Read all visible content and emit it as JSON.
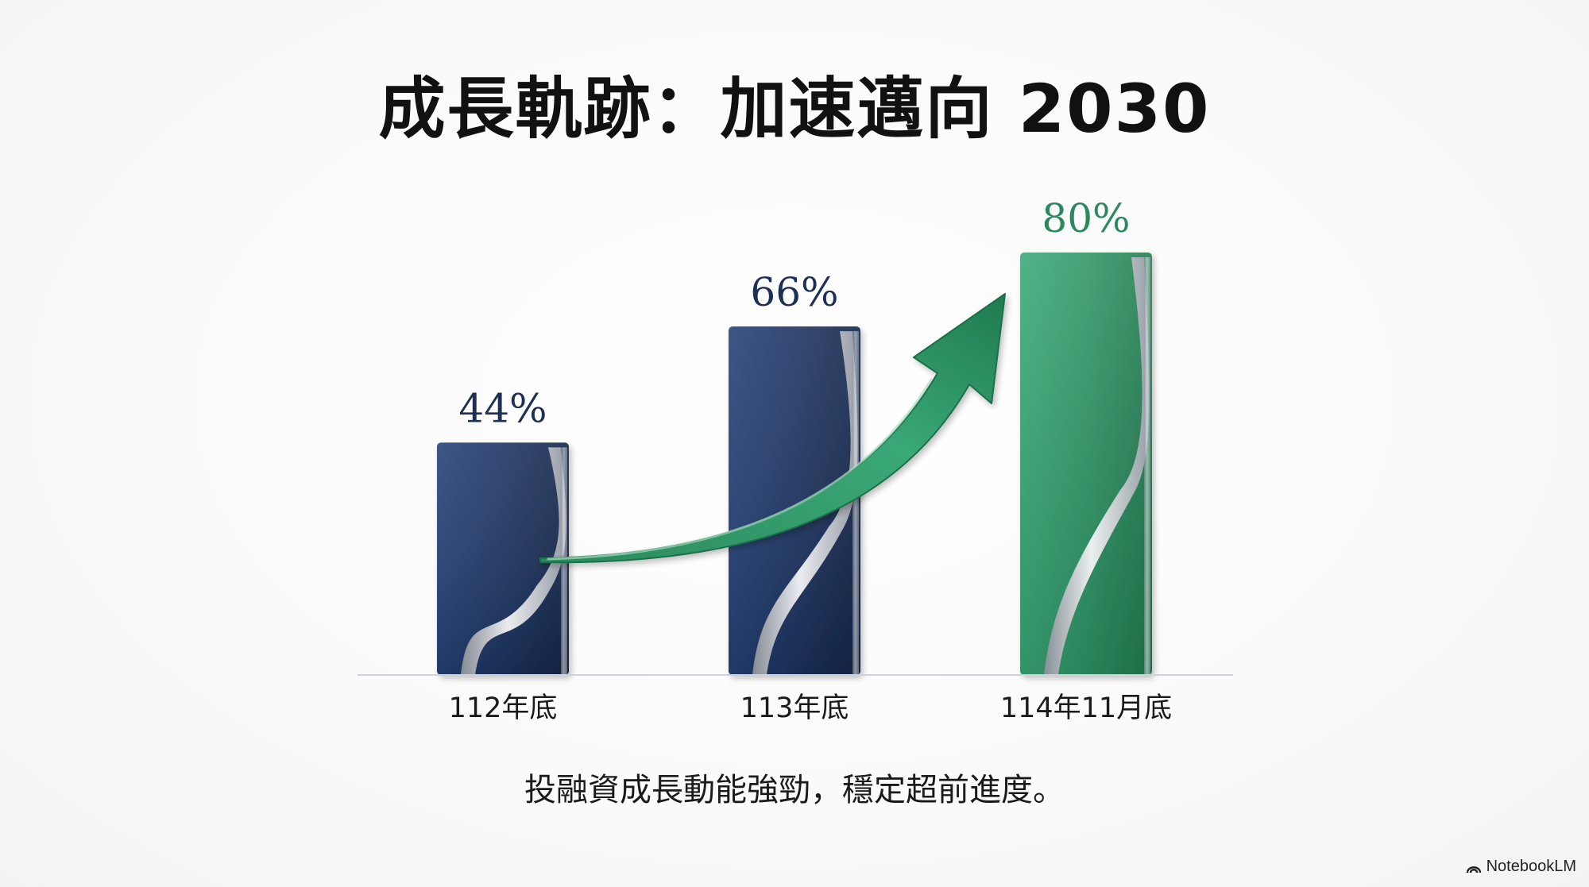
{
  "title": "成長軌跡：加速邁向 2030",
  "subtitle": "投融資成長動能強勁，穩定超前進度。",
  "brand": {
    "name": "NotebookLM",
    "icon": "notebooklm-logo-icon"
  },
  "colors": {
    "navy": "#1d3461",
    "navy_light": "#2f4e86",
    "green": "#2f9566",
    "green_light": "#5cbf8e",
    "label_navy": "#1c2f55",
    "label_green": "#2a8a5c"
  },
  "chart_data": {
    "type": "bar",
    "title": "成長軌跡：加速邁向 2030",
    "categories": [
      "112年底",
      "113年底",
      "114年11月底"
    ],
    "values": [
      44,
      66,
      80
    ],
    "value_labels": [
      "44%",
      "66%",
      "80%"
    ],
    "unit": "%",
    "ylim": [
      0,
      100
    ],
    "bar_colors": [
      "navy",
      "navy",
      "green"
    ],
    "annotation": "upward-growth-arrow",
    "legend": "none",
    "grid": false
  }
}
